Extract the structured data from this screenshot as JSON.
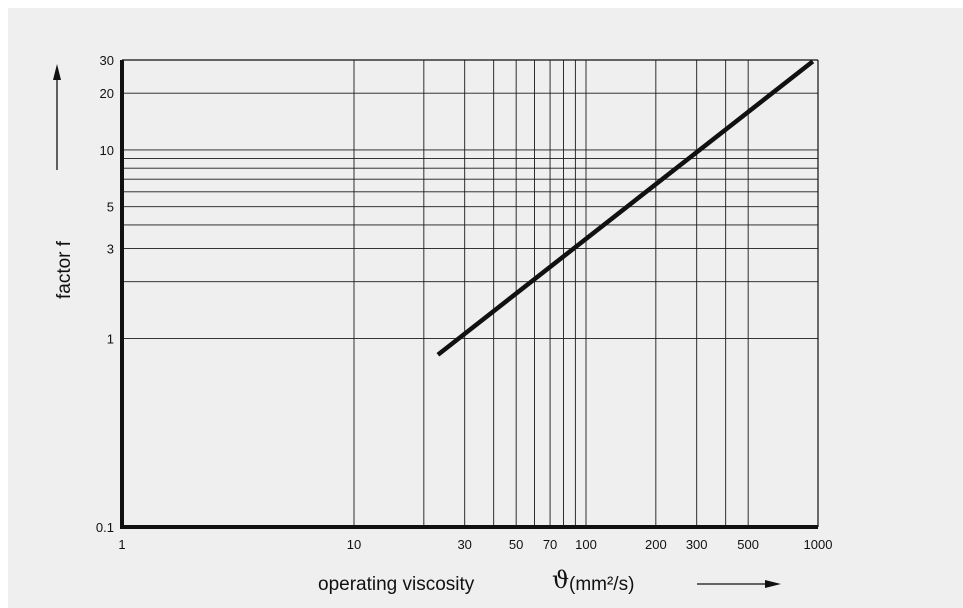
{
  "chart_data": {
    "type": "line",
    "xscale": "log",
    "yscale": "log",
    "xlim": [
      1,
      1000
    ],
    "ylim": [
      0.1,
      30
    ],
    "grid": true,
    "xlabel": "operating viscosity",
    "xsymbol": "ϑ",
    "xunit": "(mm²/s)",
    "ylabel": "factor f",
    "x_ticks": [
      {
        "value": 1,
        "label": "1"
      },
      {
        "value": 10,
        "label": "10"
      },
      {
        "value": 30,
        "label": "30"
      },
      {
        "value": 50,
        "label": "50"
      },
      {
        "value": 70,
        "label": "70"
      },
      {
        "value": 100,
        "label": "100"
      },
      {
        "value": 200,
        "label": "200"
      },
      {
        "value": 300,
        "label": "300"
      },
      {
        "value": 500,
        "label": "500"
      },
      {
        "value": 1000,
        "label": "1000"
      }
    ],
    "y_ticks": [
      {
        "value": 0.1,
        "label": "0.1"
      },
      {
        "value": 1,
        "label": "1"
      },
      {
        "value": 3,
        "label": "3"
      },
      {
        "value": 5,
        "label": "5"
      },
      {
        "value": 10,
        "label": "10"
      },
      {
        "value": 20,
        "label": "20"
      },
      {
        "value": 30,
        "label": "30"
      }
    ],
    "x_gridlines": [
      10,
      20,
      30,
      40,
      50,
      60,
      70,
      80,
      90,
      100,
      200,
      300,
      400,
      500
    ],
    "y_gridlines": [
      1,
      2,
      3,
      4,
      5,
      6,
      7,
      8,
      9,
      10,
      20
    ],
    "series": [
      {
        "x": [
          23,
          950
        ],
        "y": [
          0.82,
          29.5
        ]
      }
    ]
  }
}
